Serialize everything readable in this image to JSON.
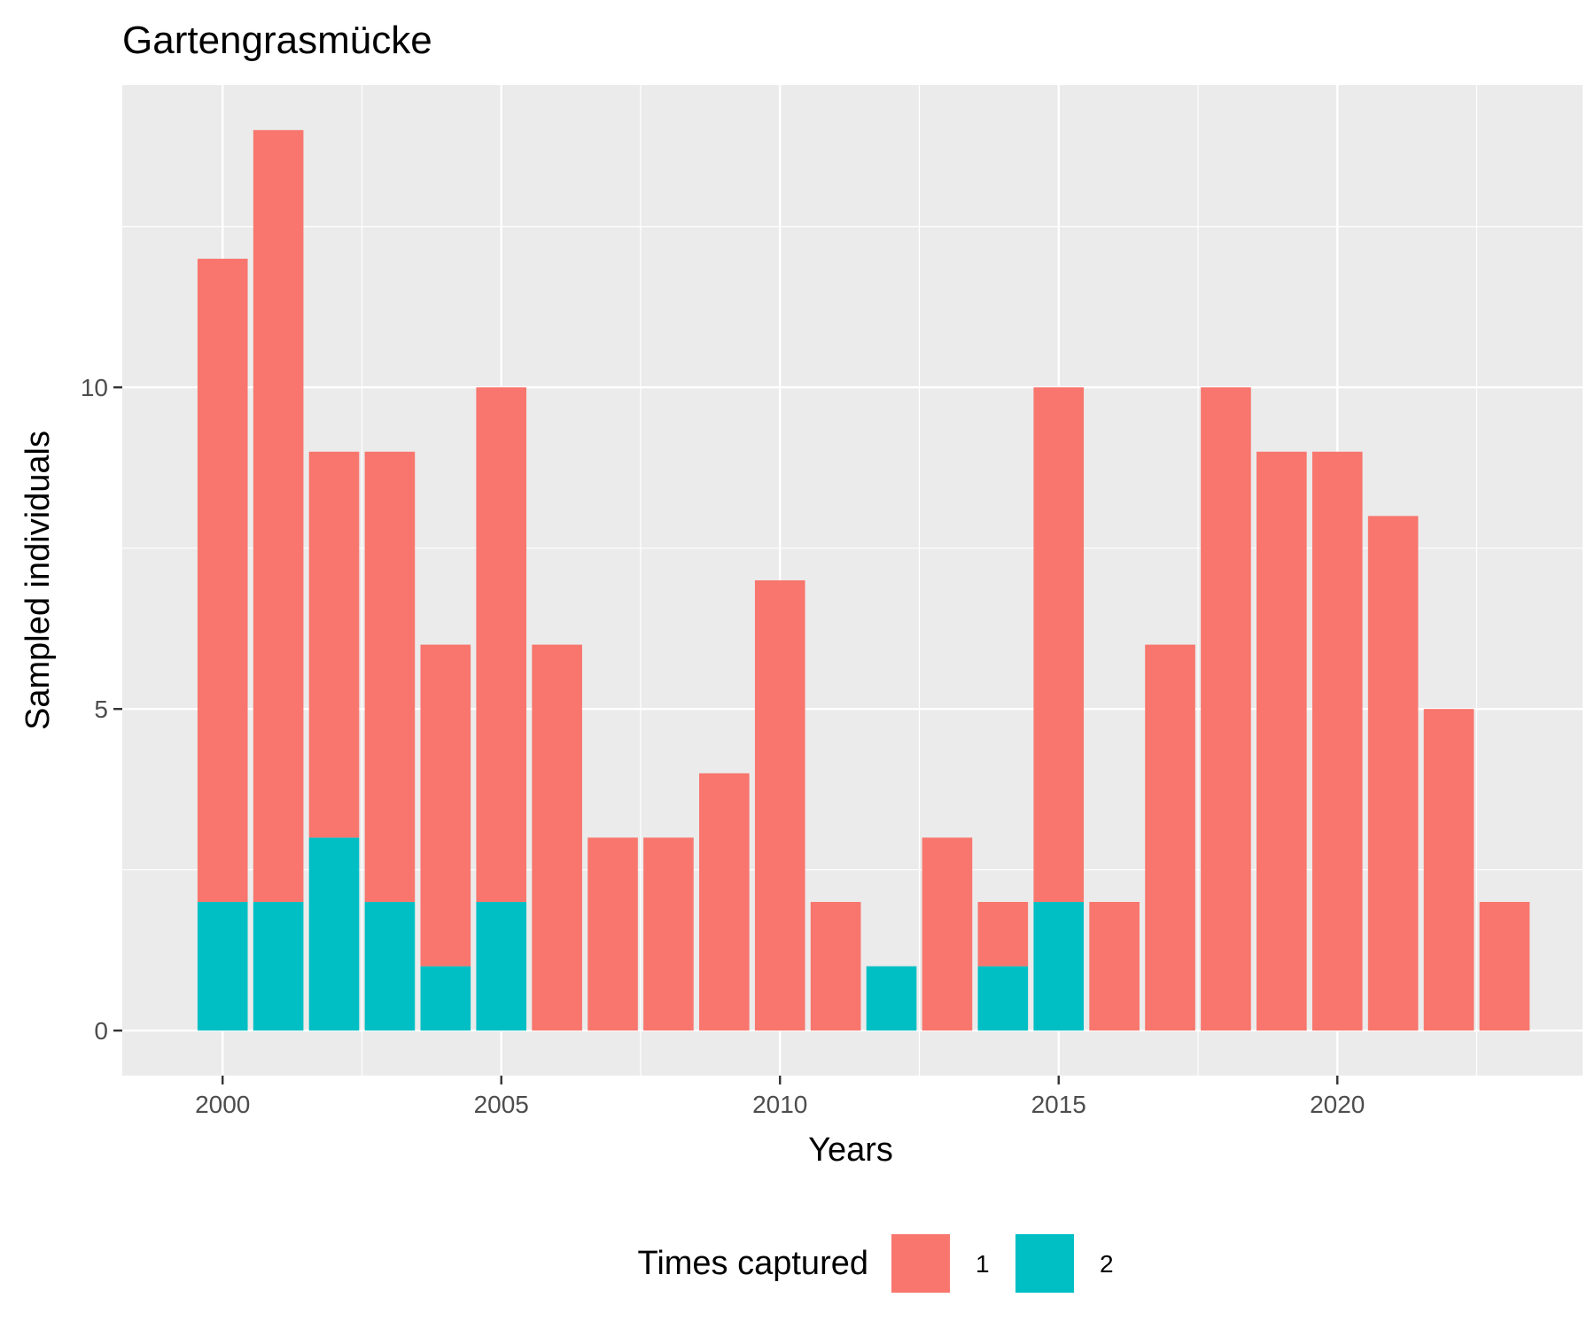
{
  "chart_data": {
    "type": "bar",
    "stacked": true,
    "title": "Gartengrasmücke",
    "xlabel": "Years",
    "ylabel": "Sampled individuals",
    "x": [
      2000,
      2001,
      2002,
      2003,
      2004,
      2005,
      2006,
      2007,
      2008,
      2009,
      2010,
      2011,
      2012,
      2013,
      2014,
      2015,
      2016,
      2017,
      2018,
      2019,
      2020,
      2021,
      2022,
      2023
    ],
    "series": [
      {
        "name": "2",
        "color": "#00BFC4",
        "values": [
          2,
          2,
          3,
          2,
          1,
          2,
          0,
          0,
          0,
          0,
          0,
          0,
          1,
          0,
          1,
          2,
          0,
          0,
          0,
          0,
          0,
          0,
          0,
          0
        ]
      },
      {
        "name": "1",
        "color": "#F8766D",
        "values": [
          10,
          12,
          6,
          7,
          5,
          8,
          6,
          3,
          3,
          4,
          7,
          2,
          0,
          3,
          1,
          8,
          2,
          6,
          10,
          9,
          9,
          8,
          5,
          2
        ]
      }
    ],
    "xticks": [
      "2000",
      "2005",
      "2010",
      "2015",
      "2020"
    ],
    "yticks": [
      "0",
      "5",
      "10"
    ],
    "xlim": [
      1998.2,
      2024.4
    ],
    "ylim": [
      -0.7,
      14.7
    ],
    "grid": true,
    "panel_background": "#EBEBEB",
    "legend": {
      "title": "Times captured",
      "position": "bottom",
      "items": [
        {
          "label": "1",
          "color": "#F8766D"
        },
        {
          "label": "2",
          "color": "#00BFC4"
        }
      ]
    }
  }
}
